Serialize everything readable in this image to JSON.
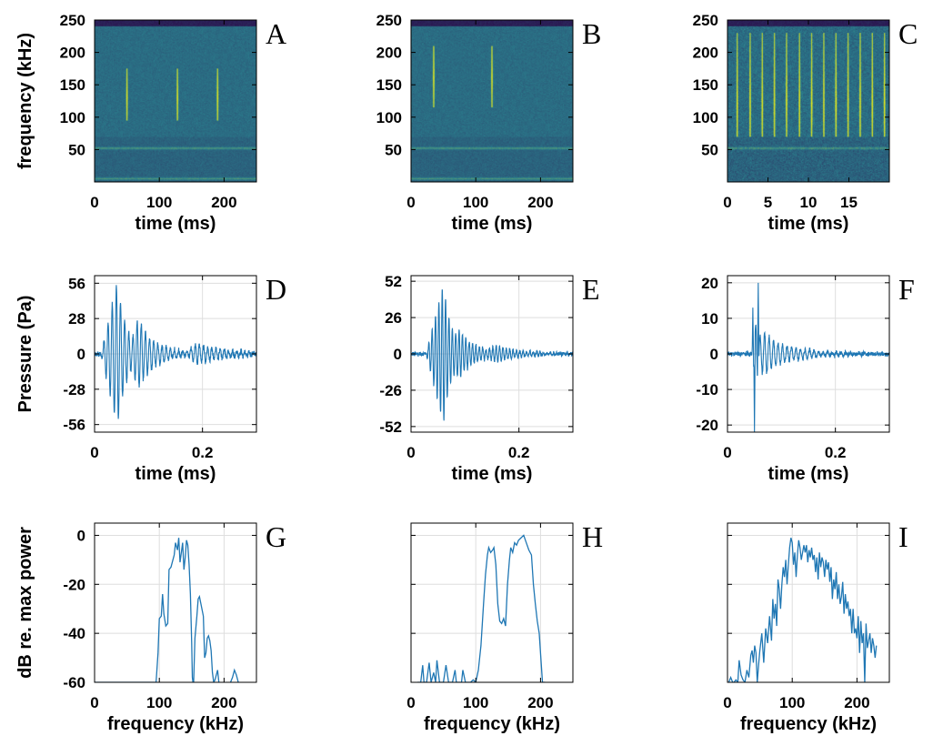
{
  "colors": {
    "trace": "#1f77b4",
    "grid": "#dedede",
    "axis": "#000000",
    "spec_low": "#2a0a4a",
    "spec_mid": "#2a7f8e",
    "spec_high": "#e6e419"
  },
  "chart_data": [
    {
      "panel": "A",
      "type": "heatmap",
      "xlabel": "time (ms)",
      "ylabel": "frequency (kHz)",
      "xlim": [
        0,
        250
      ],
      "ylim": [
        0,
        250
      ],
      "xticks": [
        0,
        100,
        200
      ],
      "yticks": [
        50,
        100,
        150,
        200,
        250
      ],
      "tones_khz": [
        5,
        52
      ],
      "clicks": [
        {
          "t": 50,
          "f_lo": 95,
          "f_hi": 175,
          "f_peak": 130
        },
        {
          "t": 128,
          "f_lo": 95,
          "f_hi": 175,
          "f_peak": 130
        },
        {
          "t": 190,
          "f_lo": 95,
          "f_hi": 175,
          "f_peak": 130
        }
      ]
    },
    {
      "panel": "B",
      "type": "heatmap",
      "xlabel": "time (ms)",
      "ylabel": "",
      "xlim": [
        0,
        250
      ],
      "ylim": [
        0,
        250
      ],
      "xticks": [
        0,
        100,
        200
      ],
      "yticks": [
        50,
        100,
        150,
        200,
        250
      ],
      "tones_khz": [
        5,
        52
      ],
      "clicks": [
        {
          "t": 35,
          "f_lo": 115,
          "f_hi": 210,
          "f_peak": 160
        },
        {
          "t": 125,
          "f_lo": 115,
          "f_hi": 210,
          "f_peak": 160
        }
      ]
    },
    {
      "panel": "C",
      "type": "heatmap",
      "xlabel": "time (ms)",
      "ylabel": "",
      "xlim": [
        0,
        20
      ],
      "ylim": [
        0,
        250
      ],
      "xticks": [
        0,
        5,
        10,
        15
      ],
      "yticks": [
        50,
        100,
        150,
        200,
        250
      ],
      "tones_khz": [
        52
      ],
      "clicks": [
        {
          "t": 1.2,
          "f_lo": 70,
          "f_hi": 230,
          "f_peak": 120
        },
        {
          "t": 2.8,
          "f_lo": 70,
          "f_hi": 230,
          "f_peak": 120
        },
        {
          "t": 4.3,
          "f_lo": 70,
          "f_hi": 230,
          "f_peak": 120
        },
        {
          "t": 5.8,
          "f_lo": 70,
          "f_hi": 230,
          "f_peak": 120
        },
        {
          "t": 7.3,
          "f_lo": 70,
          "f_hi": 230,
          "f_peak": 120
        },
        {
          "t": 8.9,
          "f_lo": 70,
          "f_hi": 230,
          "f_peak": 120
        },
        {
          "t": 10.4,
          "f_lo": 70,
          "f_hi": 230,
          "f_peak": 120
        },
        {
          "t": 11.9,
          "f_lo": 70,
          "f_hi": 230,
          "f_peak": 120
        },
        {
          "t": 13.4,
          "f_lo": 70,
          "f_hi": 230,
          "f_peak": 120
        },
        {
          "t": 14.9,
          "f_lo": 70,
          "f_hi": 230,
          "f_peak": 120
        },
        {
          "t": 16.4,
          "f_lo": 70,
          "f_hi": 230,
          "f_peak": 120
        },
        {
          "t": 17.9,
          "f_lo": 70,
          "f_hi": 230,
          "f_peak": 120
        },
        {
          "t": 19.4,
          "f_lo": 70,
          "f_hi": 230,
          "f_peak": 120
        }
      ]
    },
    {
      "panel": "D",
      "type": "line",
      "xlabel": "time (ms)",
      "ylabel": "Pressure (Pa)",
      "xlim": [
        0,
        0.3
      ],
      "ylim": [
        -62,
        62
      ],
      "xticks": [
        0,
        0.2
      ],
      "xticklabels": [
        "0",
        "0.2"
      ],
      "yticks": [
        -56,
        -28,
        0,
        28,
        56
      ],
      "yticklabels": [
        "-56",
        "-28",
        "0",
        "28",
        "56"
      ],
      "waveform": {
        "carrier_khz": 130,
        "noise": 4,
        "bursts": [
          {
            "t0": 0.012,
            "rise": 0.03,
            "decay": 0.018,
            "amp": 58
          },
          {
            "t0": 0.07,
            "rise": 0.01,
            "decay": 0.035,
            "amp": 22
          },
          {
            "t0": 0.17,
            "rise": 0.02,
            "decay": 0.06,
            "amp": 7
          }
        ]
      }
    },
    {
      "panel": "E",
      "type": "line",
      "xlabel": "time (ms)",
      "ylabel": "",
      "xlim": [
        0,
        0.3
      ],
      "ylim": [
        -56,
        56
      ],
      "xticks": [
        0,
        0.2
      ],
      "xticklabels": [
        "0",
        "0.2"
      ],
      "yticks": [
        -52,
        -26,
        0,
        26,
        52
      ],
      "yticklabels": [
        "-52",
        "-26",
        "0",
        "26",
        "52"
      ],
      "waveform": {
        "carrier_khz": 160,
        "noise": 2.5,
        "bursts": [
          {
            "t0": 0.028,
            "rise": 0.032,
            "decay": 0.016,
            "amp": 50
          },
          {
            "t0": 0.08,
            "rise": 0.01,
            "decay": 0.04,
            "amp": 10
          },
          {
            "t0": 0.14,
            "rise": 0.02,
            "decay": 0.05,
            "amp": 4
          }
        ]
      }
    },
    {
      "panel": "F",
      "type": "line",
      "xlabel": "time (ms)",
      "ylabel": "",
      "xlim": [
        0,
        0.3
      ],
      "ylim": [
        -22,
        22
      ],
      "xticks": [
        0,
        0.2
      ],
      "xticklabels": [
        "0",
        "0.2"
      ],
      "yticks": [
        -20,
        -10,
        0,
        10,
        20
      ],
      "yticklabels": [
        "-20",
        "-10",
        "0",
        "10",
        "20"
      ],
      "waveform": {
        "carrier_khz": 120,
        "noise": 1.2,
        "spikes": [
          {
            "t": 0.05,
            "amp": -22
          },
          {
            "t": 0.057,
            "amp": 20
          },
          {
            "t": 0.047,
            "amp": 13
          }
        ],
        "bursts": [
          {
            "t0": 0.045,
            "rise": 0.008,
            "decay": 0.012,
            "amp": 9
          },
          {
            "t0": 0.06,
            "rise": 0.01,
            "decay": 0.06,
            "amp": 4
          }
        ]
      }
    },
    {
      "panel": "G",
      "type": "line",
      "xlabel": "frequency (kHz)",
      "ylabel": "dB re. max power",
      "xlim": [
        0,
        250
      ],
      "ylim": [
        -60,
        5
      ],
      "xticks": [
        0,
        100,
        200
      ],
      "yticks": [
        -60,
        -40,
        -20,
        0
      ],
      "spectrum": {
        "x": [
          95,
          98,
          100,
          103,
          105,
          107,
          110,
          113,
          115,
          118,
          120,
          123,
          125,
          128,
          130,
          132,
          134,
          136,
          138,
          140,
          142,
          144,
          146,
          148,
          150,
          151,
          152,
          153,
          155,
          158,
          160,
          162,
          165,
          168,
          170,
          172,
          174,
          176,
          178,
          180,
          182,
          184,
          186,
          188,
          190,
          192
        ],
        "y": [
          -60,
          -48,
          -34,
          -33,
          -24,
          -32,
          -37,
          -36,
          -14,
          -13,
          -11,
          -8,
          -3,
          -6,
          -1,
          -11,
          -7,
          -3,
          -14,
          -9,
          -2,
          -4,
          -12,
          -24,
          -44,
          -58,
          -60,
          -60,
          -42,
          -33,
          -26,
          -25,
          -29,
          -33,
          -50,
          -48,
          -42,
          -41,
          -43,
          -47,
          -56,
          -60,
          -59,
          -57,
          -55,
          -60
        ],
        "extra": [
          {
            "x": [
              210,
              213,
              216,
              219,
              222
            ],
            "y": [
              -60,
              -58,
              -55,
              -57,
              -60
            ]
          }
        ],
        "floor": {
          "x": [
            0,
            95
          ],
          "y": [
            -60,
            -60
          ]
        }
      }
    },
    {
      "panel": "H",
      "type": "line",
      "xlabel": "frequency (kHz)",
      "ylabel": "",
      "xlim": [
        0,
        250
      ],
      "ylim": [
        -60,
        5
      ],
      "xticks": [
        0,
        100,
        200
      ],
      "yticks": [
        -60,
        -40,
        -20,
        0
      ],
      "spectrum": {
        "x": [
          10,
          12,
          15,
          18,
          20,
          24,
          28,
          31,
          35,
          38,
          40,
          44,
          48,
          50,
          54,
          58,
          60,
          64,
          68,
          70,
          74,
          78,
          80,
          84,
          88,
          92,
          96,
          100,
          104,
          108,
          112,
          115,
          118,
          120,
          123,
          126,
          128,
          131,
          134,
          137,
          140,
          143,
          146,
          149,
          152,
          154,
          157,
          160,
          163,
          166,
          170,
          174,
          178,
          182,
          186,
          189,
          192,
          195,
          198,
          201,
          203,
          205,
          207
        ],
        "y": [
          -60,
          -60,
          -60,
          -53,
          -60,
          -60,
          -52,
          -60,
          -56,
          -60,
          -51,
          -60,
          -60,
          -60,
          -53,
          -60,
          -60,
          -60,
          -55,
          -60,
          -60,
          -60,
          -55,
          -60,
          -60,
          -60,
          -59,
          -60,
          -55,
          -45,
          -28,
          -16,
          -8,
          -5,
          -7,
          -6,
          -5,
          -12,
          -28,
          -35,
          -36,
          -34,
          -37,
          -20,
          -10,
          -5,
          -7,
          -3,
          -4,
          -2,
          -1,
          0,
          -3,
          -6,
          -8,
          -20,
          -28,
          -35,
          -40,
          -52,
          -60,
          -60,
          -60
        ]
      }
    },
    {
      "panel": "I",
      "type": "line",
      "xlabel": "frequency (kHz)",
      "ylabel": "",
      "xlim": [
        0,
        250
      ],
      "ylim": [
        -60,
        5
      ],
      "xticks": [
        0,
        100,
        200
      ],
      "yticks": [
        -60,
        -40,
        -20,
        0
      ],
      "spectrum": {
        "x": [
          2,
          5,
          8,
          10,
          13,
          16,
          18,
          21,
          24,
          27,
          30,
          33,
          36,
          38,
          40,
          42,
          44,
          46,
          48,
          50,
          53,
          56,
          59,
          62,
          65,
          68,
          70,
          72,
          74,
          76,
          78,
          80,
          82,
          84,
          86,
          88,
          90,
          92,
          94,
          96,
          98,
          100,
          102,
          104,
          106,
          108,
          110,
          112,
          114,
          116,
          118,
          120,
          122,
          124,
          126,
          128,
          130,
          132,
          134,
          136,
          138,
          140,
          142,
          144,
          146,
          148,
          150,
          152,
          154,
          156,
          158,
          160,
          162,
          164,
          166,
          168,
          170,
          172,
          174,
          176,
          178,
          180,
          182,
          184,
          186,
          188,
          190,
          192,
          194,
          196,
          198,
          200,
          202,
          204,
          206,
          208,
          210,
          212,
          214,
          216,
          218,
          220,
          222,
          224,
          226,
          228,
          230
        ],
        "y": [
          -60,
          -58,
          -60,
          -60,
          -59,
          -60,
          -51,
          -57,
          -59,
          -60,
          -55,
          -58,
          -49,
          -47,
          -52,
          -45,
          -48,
          -60,
          -53,
          -47,
          -40,
          -52,
          -38,
          -44,
          -33,
          -43,
          -26,
          -34,
          -28,
          -37,
          -18,
          -22,
          -30,
          -20,
          -13,
          -17,
          -10,
          -20,
          -12,
          -5,
          -1,
          -3,
          -12,
          -7,
          -17,
          -8,
          -2,
          -5,
          -10,
          -7,
          -4,
          -7,
          -4,
          -11,
          -6,
          -9,
          -5,
          -10,
          -8,
          -15,
          -9,
          -18,
          -7,
          -13,
          -9,
          -11,
          -17,
          -10,
          -14,
          -11,
          -19,
          -13,
          -26,
          -18,
          -22,
          -15,
          -26,
          -20,
          -28,
          -25,
          -19,
          -32,
          -24,
          -30,
          -27,
          -33,
          -30,
          -40,
          -30,
          -40,
          -38,
          -42,
          -33,
          -48,
          -35,
          -44,
          -40,
          -60,
          -36,
          -46,
          -43,
          -40,
          -48,
          -42,
          -45,
          -50,
          -45
        ]
      }
    }
  ]
}
